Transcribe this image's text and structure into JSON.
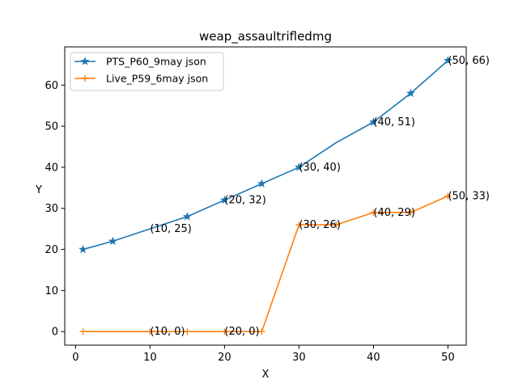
{
  "chart_data": {
    "type": "line",
    "title": "weap_assaultrifledmg",
    "xlabel": "X",
    "ylabel": "Y",
    "xlim": [
      -1.45,
      52.45
    ],
    "ylim": [
      -3.3,
      69.3
    ],
    "xticks": [
      0,
      10,
      20,
      30,
      40,
      50
    ],
    "yticks": [
      0,
      10,
      20,
      30,
      40,
      50,
      60
    ],
    "grid": false,
    "legend_position": "top-left",
    "series": [
      {
        "name": "PTS_P60_9may json",
        "color": "#1f77b4",
        "marker": "star",
        "x": [
          1,
          5,
          10,
          15,
          20,
          25,
          30,
          35,
          40,
          45,
          50
        ],
        "y": [
          20,
          22,
          25,
          28,
          32,
          36,
          40,
          46,
          51,
          58,
          66
        ],
        "marked_x": [
          1,
          5,
          15,
          20,
          25,
          30,
          40,
          45,
          50
        ]
      },
      {
        "name": "Live_P59_6may json",
        "color": "#ff7f0e",
        "marker": "plus",
        "x": [
          1,
          10,
          15,
          20,
          25,
          30,
          35,
          40,
          45,
          50
        ],
        "y": [
          0,
          0,
          0,
          0,
          0,
          26,
          26,
          29,
          29,
          33
        ],
        "marked_x": [
          1,
          10,
          15,
          20,
          25,
          30,
          35,
          40,
          45,
          50
        ]
      }
    ],
    "annotations": [
      {
        "x": 10,
        "y": 25,
        "text": "(10, 25)"
      },
      {
        "x": 20,
        "y": 32,
        "text": "(20, 32)"
      },
      {
        "x": 30,
        "y": 40,
        "text": "(30, 40)"
      },
      {
        "x": 40,
        "y": 51,
        "text": "(40, 51)"
      },
      {
        "x": 50,
        "y": 66,
        "text": "(50, 66)"
      },
      {
        "x": 10,
        "y": 0,
        "text": "(10, 0)"
      },
      {
        "x": 20,
        "y": 0,
        "text": "(20, 0)"
      },
      {
        "x": 30,
        "y": 26,
        "text": "(30, 26)"
      },
      {
        "x": 40,
        "y": 29,
        "text": "(40, 29)"
      },
      {
        "x": 50,
        "y": 33,
        "text": "(50, 33)"
      }
    ]
  }
}
